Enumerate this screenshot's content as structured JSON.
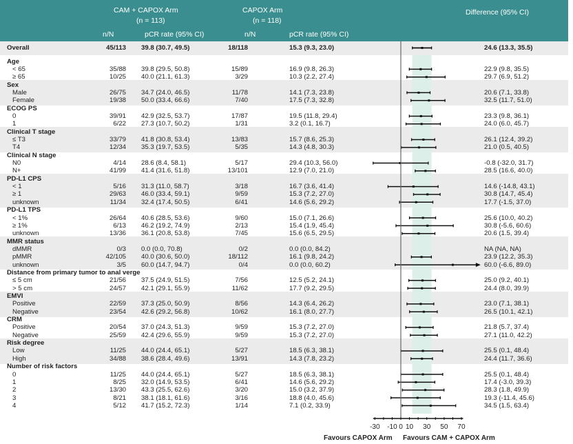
{
  "header": {
    "cam_arm": "CAM + CAPOX Arm",
    "cam_n": "(n = 113)",
    "capox_arm": "CAPOX Arm",
    "capox_n": "(n = 118)",
    "difference": "Difference (95% CI)",
    "col_nN": "n/N",
    "col_rate": "pCR rate (95% CI)"
  },
  "chart_data": {
    "type": "forest",
    "xlim": [
      -30,
      70
    ],
    "xticks": [
      "-30",
      "-10",
      "0",
      "10",
      "30",
      "50",
      "70"
    ],
    "reference_line": 0,
    "shaded_band": [
      13.3,
      35.5
    ],
    "favours_left": "Favours CAPOX Arm",
    "favours_right": "Favours CAM + CAPOX Arm",
    "overall": {
      "label": "Overall",
      "cam_nN": "45/113",
      "cam_rate": "39.8 (30.7, 49.5)",
      "capox_nN": "18/118",
      "capox_rate": "15.3 (9.3, 23.0)",
      "diff_text": "24.6 (13.3, 35.5)",
      "diff": [
        24.6,
        13.3,
        35.5
      ]
    },
    "groups": [
      {
        "label": "Age",
        "rows": [
          {
            "label": "< 65",
            "cam_nN": "35/88",
            "cam_rate": "39.8 (29.5, 50.8)",
            "capox_nN": "15/89",
            "capox_rate": "16.9 (9.8, 26.3)",
            "diff_text": "22.9 (9.8, 35.5)",
            "diff": [
              22.9,
              9.8,
              35.5
            ]
          },
          {
            "label": "≥ 65",
            "cam_nN": "10/25",
            "cam_rate": "40.0 (21.1, 61.3)",
            "capox_nN": "3/29",
            "capox_rate": "10.3 (2.2, 27.4)",
            "diff_text": "29.7 (6.9, 51.2)",
            "diff": [
              29.7,
              6.9,
              51.2
            ]
          }
        ]
      },
      {
        "label": "Sex",
        "rows": [
          {
            "label": "Male",
            "cam_nN": "26/75",
            "cam_rate": "34.7 (24.0, 46.5)",
            "capox_nN": "11/78",
            "capox_rate": "14.1 (7.3, 23.8)",
            "diff_text": "20.6 (7.1, 33.8)",
            "diff": [
              20.6,
              7.1,
              33.8
            ]
          },
          {
            "label": "Female",
            "cam_nN": "19/38",
            "cam_rate": "50.0 (33.4, 66.6)",
            "capox_nN": "7/40",
            "capox_rate": "17.5 (7.3, 32.8)",
            "diff_text": "32.5 (11.7, 51.0)",
            "diff": [
              32.5,
              11.7,
              51.0
            ]
          }
        ]
      },
      {
        "label": "ECOG PS",
        "rows": [
          {
            "label": "0",
            "cam_nN": "39/91",
            "cam_rate": "42.9 (32.5, 53.7)",
            "capox_nN": "17/87",
            "capox_rate": "19.5 (11.8, 29.4)",
            "diff_text": "23.3 (9.8, 36.1)",
            "diff": [
              23.3,
              9.8,
              36.1
            ]
          },
          {
            "label": "1",
            "cam_nN": "6/22",
            "cam_rate": "27.3 (10.7, 50.2)",
            "capox_nN": "1/31",
            "capox_rate": "3.2 (0.1, 16.7)",
            "diff_text": "24.0 (6.0, 45.7)",
            "diff": [
              24.0,
              6.0,
              45.7
            ]
          }
        ]
      },
      {
        "label": "Clinical T stage",
        "rows": [
          {
            "label": "≤ T3",
            "cam_nN": "33/79",
            "cam_rate": "41.8 (30.8, 53.4)",
            "capox_nN": "13/83",
            "capox_rate": "15.7 (8.6, 25.3)",
            "diff_text": "26.1 (12.4, 39.2)",
            "diff": [
              26.1,
              12.4,
              39.2
            ]
          },
          {
            "label": "T4",
            "cam_nN": "12/34",
            "cam_rate": "35.3 (19.7, 53.5)",
            "capox_nN": "5/35",
            "capox_rate": "14.3 (4.8, 30.3)",
            "diff_text": "21.0 (0.5, 40.5)",
            "diff": [
              21.0,
              0.5,
              40.5
            ]
          }
        ]
      },
      {
        "label": "Clinical N stage",
        "rows": [
          {
            "label": "N0",
            "cam_nN": "4/14",
            "cam_rate": "28.6 (8.4, 58.1)",
            "capox_nN": "5/17",
            "capox_rate": "29.4 (10.3, 56.0)",
            "diff_text": "-0.8 (-32.0, 31.7)",
            "diff": [
              -0.8,
              -32.0,
              31.7
            ]
          },
          {
            "label": "N+",
            "cam_nN": "41/99",
            "cam_rate": "41.4 (31.6, 51.8)",
            "capox_nN": "13/101",
            "capox_rate": "12.9 (7.0, 21.0)",
            "diff_text": "28.5 (16.6, 40.0)",
            "diff": [
              28.5,
              16.6,
              40.0
            ]
          }
        ]
      },
      {
        "label": "PD-L1 CPS",
        "rows": [
          {
            "label": "< 1",
            "cam_nN": "5/16",
            "cam_rate": "31.3 (11.0, 58.7)",
            "capox_nN": "3/18",
            "capox_rate": "16.7 (3.6, 41.4)",
            "diff_text": "14.6 (-14.8, 43.1)",
            "diff": [
              14.6,
              -14.8,
              43.1
            ]
          },
          {
            "label": "≥ 1",
            "cam_nN": "29/63",
            "cam_rate": "46.0 (33.4, 59.1)",
            "capox_nN": "9/59",
            "capox_rate": "15.3 (7.2, 27.0)",
            "diff_text": "30.8 (14.7, 45.4)",
            "diff": [
              30.8,
              14.7,
              45.4
            ]
          },
          {
            "label": "unknown",
            "cam_nN": "11/34",
            "cam_rate": "32.4 (17.4, 50.5)",
            "capox_nN": "6/41",
            "capox_rate": "14.6 (5.6, 29.2)",
            "diff_text": "17.7 (-1.5, 37.0)",
            "diff": [
              17.7,
              -1.5,
              37.0
            ]
          }
        ]
      },
      {
        "label": "PD-L1 TPS",
        "rows": [
          {
            "label": "< 1%",
            "cam_nN": "26/64",
            "cam_rate": "40.6 (28.5, 53.6)",
            "capox_nN": "9/60",
            "capox_rate": "15.0 (7.1, 26.6)",
            "diff_text": "25.6 (10.0, 40.2)",
            "diff": [
              25.6,
              10.0,
              40.2
            ]
          },
          {
            "label": "≥ 1%",
            "cam_nN": "6/13",
            "cam_rate": "46.2 (19.2, 74.9)",
            "capox_nN": "2/13",
            "capox_rate": "15.4 (1.9, 45.4)",
            "diff_text": "30.8 (-5.6, 60.6)",
            "diff": [
              30.8,
              -5.6,
              60.6
            ]
          },
          {
            "label": "unknown",
            "cam_nN": "13/36",
            "cam_rate": "36.1 (20.8, 53.8)",
            "capox_nN": "7/45",
            "capox_rate": "15.6 (6.5, 29.5)",
            "diff_text": "20.6 (1.5, 39.4)",
            "diff": [
              20.6,
              1.5,
              39.4
            ]
          }
        ]
      },
      {
        "label": "MMR status",
        "rows": [
          {
            "label": "dMMR",
            "cam_nN": "0/3",
            "cam_rate": "0.0 (0.0, 70.8)",
            "capox_nN": "0/2",
            "capox_rate": "0.0 (0.0, 84.2)",
            "diff_text": "NA (NA, NA)",
            "diff": null
          },
          {
            "label": "pMMR",
            "cam_nN": "42/105",
            "cam_rate": "40.0 (30.6, 50.0)",
            "capox_nN": "18/112",
            "capox_rate": "16.1 (9.8, 24.2)",
            "diff_text": "23.9 (12.2, 35.3)",
            "diff": [
              23.9,
              12.2,
              35.3
            ]
          },
          {
            "label": "unknown",
            "cam_nN": "3/5",
            "cam_rate": "60.0 (14.7, 94.7)",
            "capox_nN": "0/4",
            "capox_rate": "0.0 (0.0, 60.2)",
            "diff_text": "60.0 (-6.6, 89.0)",
            "diff": [
              60.0,
              -6.6,
              89.0
            ]
          }
        ]
      },
      {
        "label": "Distance from primary tumor to anal verge",
        "rows": [
          {
            "label": "≤ 5 cm",
            "cam_nN": "21/56",
            "cam_rate": "37.5 (24.9, 51.5)",
            "capox_nN": "7/56",
            "capox_rate": "12.5 (5.2, 24.1)",
            "diff_text": "25.0 (9.2, 40.1)",
            "diff": [
              25.0,
              9.2,
              40.1
            ]
          },
          {
            "label": "> 5 cm",
            "cam_nN": "24/57",
            "cam_rate": "42.1 (29.1, 55.9)",
            "capox_nN": "11/62",
            "capox_rate": "17.7 (9.2, 29.5)",
            "diff_text": "24.4 (8.0, 39.9)",
            "diff": [
              24.4,
              8.0,
              39.9
            ]
          }
        ]
      },
      {
        "label": "EMVI",
        "rows": [
          {
            "label": "Positive",
            "cam_nN": "22/59",
            "cam_rate": "37.3 (25.0, 50.9)",
            "capox_nN": "8/56",
            "capox_rate": "14.3 (6.4, 26.2)",
            "diff_text": "23.0 (7.1, 38.1)",
            "diff": [
              23.0,
              7.1,
              38.1
            ]
          },
          {
            "label": "Negative",
            "cam_nN": "23/54",
            "cam_rate": "42.6 (29.2, 56.8)",
            "capox_nN": "10/62",
            "capox_rate": "16.1 (8.0, 27.7)",
            "diff_text": "26.5 (10.1, 42.1)",
            "diff": [
              26.5,
              10.1,
              42.1
            ]
          }
        ]
      },
      {
        "label": "CRM",
        "rows": [
          {
            "label": "Positive",
            "cam_nN": "20/54",
            "cam_rate": "37.0 (24.3, 51.3)",
            "capox_nN": "9/59",
            "capox_rate": "15.3 (7.2, 27.0)",
            "diff_text": "21.8 (5.7, 37.4)",
            "diff": [
              21.8,
              5.7,
              37.4
            ]
          },
          {
            "label": "Negative",
            "cam_nN": "25/59",
            "cam_rate": "42.4 (29.6, 55.9)",
            "capox_nN": "9/59",
            "capox_rate": "15.3 (7.2, 27.0)",
            "diff_text": "27.1 (11.0, 42.2)",
            "diff": [
              27.1,
              11.0,
              42.2
            ]
          }
        ]
      },
      {
        "label": "Risk degree",
        "rows": [
          {
            "label": "Low",
            "cam_nN": "11/25",
            "cam_rate": "44.0 (24.4, 65.1)",
            "capox_nN": "5/27",
            "capox_rate": "18.5 (6.3, 38.1)",
            "diff_text": "25.5 (0.1, 48.4)",
            "diff": [
              25.5,
              0.1,
              48.4
            ]
          },
          {
            "label": "High",
            "cam_nN": "34/88",
            "cam_rate": "38.6 (28.4, 49.6)",
            "capox_nN": "13/91",
            "capox_rate": "14.3 (7.8, 23.2)",
            "diff_text": "24.4 (11.7, 36.6)",
            "diff": [
              24.4,
              11.7,
              36.6
            ]
          }
        ]
      },
      {
        "label": "Number of risk factors",
        "rows": [
          {
            "label": "0",
            "cam_nN": "11/25",
            "cam_rate": "44.0 (24.4, 65.1)",
            "capox_nN": "5/27",
            "capox_rate": "18.5 (6.3, 38.1)",
            "diff_text": "25.5 (0.1, 48.4)",
            "diff": [
              25.5,
              0.1,
              48.4
            ]
          },
          {
            "label": "1",
            "cam_nN": "8/25",
            "cam_rate": "32.0 (14.9, 53.5)",
            "capox_nN": "6/41",
            "capox_rate": "14.6 (5.6, 29.2)",
            "diff_text": "17.4 (-3.0, 39.3)",
            "diff": [
              17.4,
              -3.0,
              39.3
            ]
          },
          {
            "label": "2",
            "cam_nN": "13/30",
            "cam_rate": "43.3 (25.5, 62.6)",
            "capox_nN": "3/20",
            "capox_rate": "15.0 (3.2, 37.9)",
            "diff_text": "28.3 (1.8, 49.9)",
            "diff": [
              28.3,
              1.8,
              49.9
            ]
          },
          {
            "label": "3",
            "cam_nN": "8/21",
            "cam_rate": "38.1 (18.1, 61.6)",
            "capox_nN": "3/16",
            "capox_rate": "18.8 (4.0, 45.6)",
            "diff_text": "19.3 (-11.4, 45.6)",
            "diff": [
              19.3,
              -11.4,
              45.6
            ]
          },
          {
            "label": "4",
            "cam_nN": "5/12",
            "cam_rate": "41.7 (15.2, 72.3)",
            "capox_nN": "1/14",
            "capox_rate": "7.1 (0.2, 33.9)",
            "diff_text": "34.5 (1.5, 63.4)",
            "diff": [
              34.5,
              1.5,
              63.4
            ]
          }
        ]
      }
    ]
  }
}
